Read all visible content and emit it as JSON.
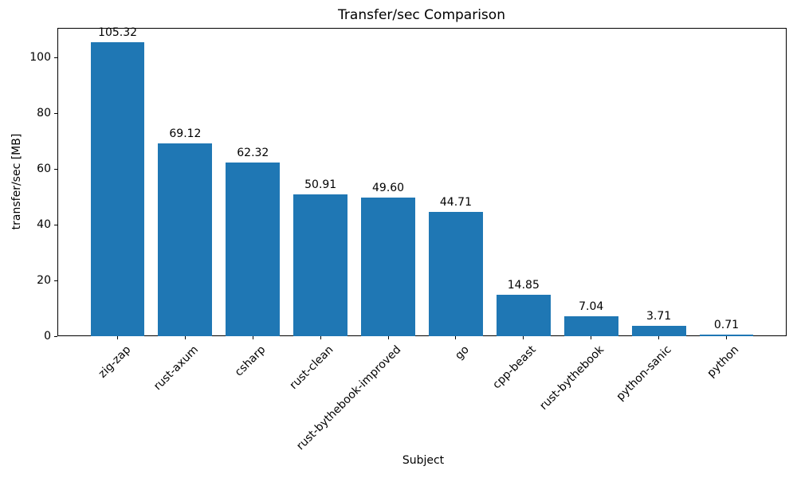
{
  "chart_data": {
    "type": "bar",
    "title": "Transfer/sec Comparison",
    "xlabel": "Subject",
    "ylabel": "transfer/sec [MB]",
    "categories": [
      "zig-zap",
      "rust-axum",
      "csharp",
      "rust-clean",
      "rust-bythebook-improved",
      "go",
      "cpp-beast",
      "rust-bythebook",
      "python-sanic",
      "python"
    ],
    "values": [
      105.32,
      69.12,
      62.32,
      50.91,
      49.6,
      44.71,
      14.85,
      7.04,
      3.71,
      0.71
    ],
    "value_labels": [
      "105.32",
      "69.12",
      "62.32",
      "50.91",
      "49.60",
      "44.71",
      "14.85",
      "7.04",
      "3.71",
      "0.71"
    ],
    "bar_color": "#1f77b4",
    "text_color": "#000000",
    "background_color": "#ffffff",
    "ylim": [
      0,
      110.59
    ],
    "yticks": [
      0,
      20,
      40,
      60,
      80,
      100
    ],
    "bar_width_fraction": 0.8,
    "grid": false,
    "legend": null,
    "x_tick_rotation_deg": 45
  }
}
